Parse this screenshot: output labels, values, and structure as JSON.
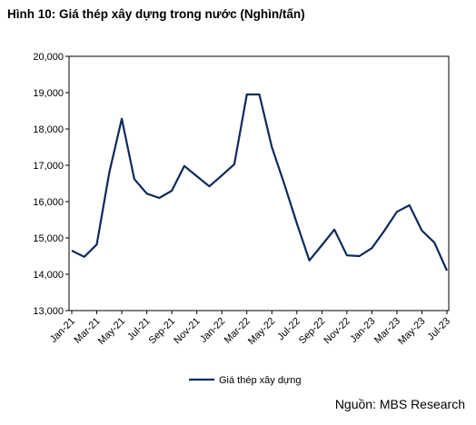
{
  "chart_data": {
    "type": "line",
    "title": "Hình 10: Giá thép xây dựng trong nước (Nghìn/tấn)",
    "categories": [
      "Jan-21",
      null,
      "Mar-21",
      null,
      "May-21",
      null,
      "Jul-21",
      null,
      "Sep-21",
      null,
      "Nov-21",
      null,
      "Jan-22",
      null,
      "Mar-22",
      null,
      "May-22",
      null,
      "Jul-22",
      null,
      "Sep-22",
      null,
      "Nov-22",
      null,
      "Jan-23",
      null,
      "Mar-23",
      null,
      "May-23",
      null,
      "Jul-23"
    ],
    "series": [
      {
        "name": "Giá thép xây dựng",
        "color": "#0d2a5c",
        "values": [
          14650,
          14480,
          14820,
          16800,
          18280,
          16620,
          16220,
          16100,
          16300,
          16980,
          16700,
          16420,
          16720,
          17030,
          18950,
          18950,
          17500,
          16480,
          15400,
          14380,
          14800,
          15230,
          14520,
          14500,
          14720,
          15200,
          15720,
          15900,
          15200,
          14870,
          14100
        ]
      }
    ],
    "ylim": [
      13000,
      20000
    ],
    "yticks": [
      {
        "value": 13000,
        "label": "13,000"
      },
      {
        "value": 14000,
        "label": "14,000"
      },
      {
        "value": 15000,
        "label": "15,000"
      },
      {
        "value": 16000,
        "label": "16,000"
      },
      {
        "value": 17000,
        "label": "17,000"
      },
      {
        "value": 18000,
        "label": "18,000"
      },
      {
        "value": 19000,
        "label": "19,000"
      },
      {
        "value": 20000,
        "label": "20,000"
      }
    ],
    "legend": "bottom",
    "source": "Nguồn: MBS Research"
  }
}
